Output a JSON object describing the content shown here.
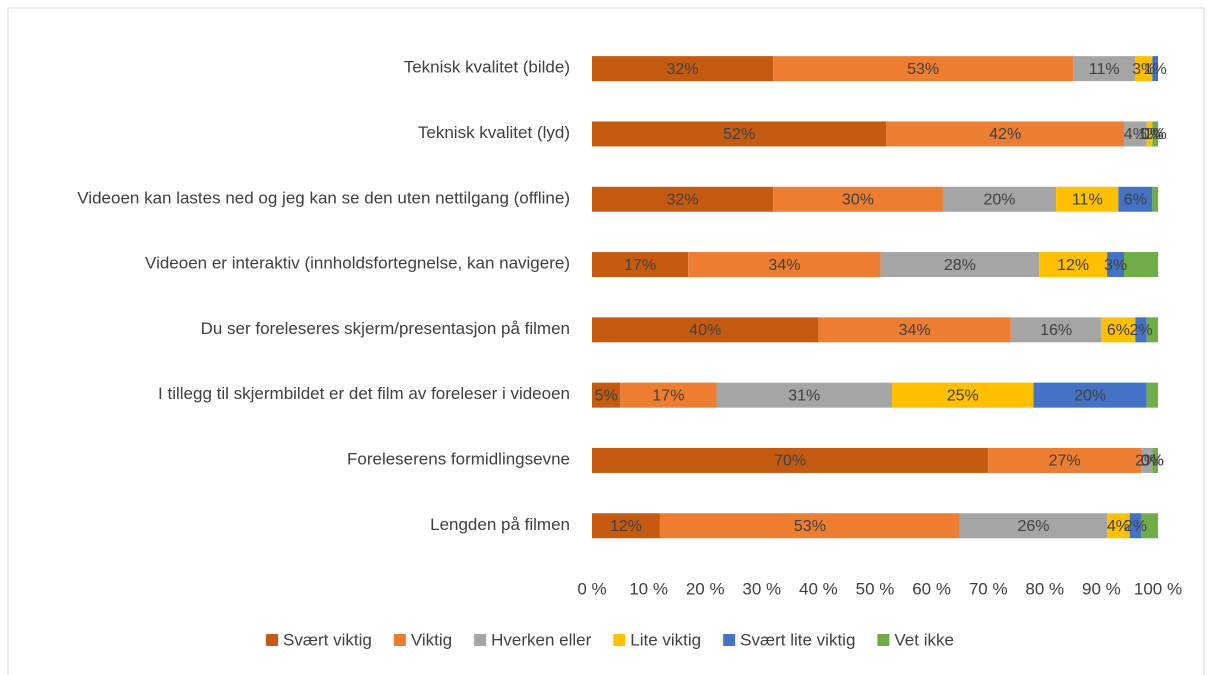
{
  "chart_data": {
    "type": "stacked_bar_horizontal",
    "categories": [
      "Teknisk kvalitet (bilde)",
      "Teknisk kvalitet (lyd)",
      "Videoen kan lastes ned og jeg kan se den uten nettilgang (offline)",
      "Videoen er interaktiv (innholdsfortegnelse, kan navigere)",
      "Du ser foreleseres skjerm/presentasjon på filmen",
      "I tillegg til skjermbildet er det film av foreleser i videoen",
      "Foreleserens formidlingsevne",
      "Lengden på filmen"
    ],
    "series": [
      {
        "name": "Svært viktig",
        "color": "#c55a11",
        "values": [
          32,
          52,
          32,
          17,
          40,
          5,
          70,
          12
        ],
        "value_labels": [
          "32%",
          "52%",
          "32%",
          "17%",
          "40%",
          "5%",
          "70%",
          "12%"
        ]
      },
      {
        "name": "Viktig",
        "color": "#ed7d31",
        "values": [
          53,
          42,
          30,
          34,
          34,
          17,
          27,
          53
        ],
        "value_labels": [
          "53%",
          "42%",
          "30%",
          "34%",
          "34%",
          "17%",
          "27%",
          "53%"
        ]
      },
      {
        "name": "Hverken eller",
        "color": "#a5a5a5",
        "values": [
          11,
          4,
          20,
          28,
          16,
          31,
          2,
          26
        ],
        "value_labels": [
          "11%",
          "4%",
          "20%",
          "28%",
          "16%",
          "31%",
          "2%",
          "26%"
        ]
      },
      {
        "name": "Lite viktig",
        "color": "#ffc000",
        "values": [
          3,
          1,
          11,
          12,
          6,
          25,
          0,
          4
        ],
        "value_labels": [
          "3%",
          "1%",
          "11%",
          "12%",
          "6%",
          "25%",
          "0%",
          "4%"
        ]
      },
      {
        "name": "Svært lite viktig",
        "color": "#4472c4",
        "values": [
          1,
          0,
          6,
          3,
          2,
          20,
          0,
          2
        ],
        "value_labels": [
          "1%",
          "0%",
          "6%",
          "3%",
          "2%",
          "20%",
          "0%",
          "2%"
        ]
      },
      {
        "name": "Vet ikke",
        "color": "#70ad47",
        "values": [
          0,
          1,
          1,
          6,
          2,
          2,
          1,
          3
        ],
        "value_labels": [
          null,
          "1%",
          null,
          null,
          null,
          null,
          null,
          null
        ]
      }
    ],
    "xlim": [
      0,
      100
    ],
    "xticks": [
      {
        "value": 0,
        "label": "0 %"
      },
      {
        "value": 10,
        "label": "10 %"
      },
      {
        "value": 20,
        "label": "20 %"
      },
      {
        "value": 30,
        "label": "30 %"
      },
      {
        "value": 40,
        "label": "40 %"
      },
      {
        "value": 50,
        "label": "50 %"
      },
      {
        "value": 60,
        "label": "60 %"
      },
      {
        "value": 70,
        "label": "70 %"
      },
      {
        "value": 80,
        "label": "80 %"
      },
      {
        "value": 90,
        "label": "90 %"
      },
      {
        "value": 100,
        "label": "100 %"
      }
    ],
    "grid": false,
    "legend": "bottom"
  }
}
